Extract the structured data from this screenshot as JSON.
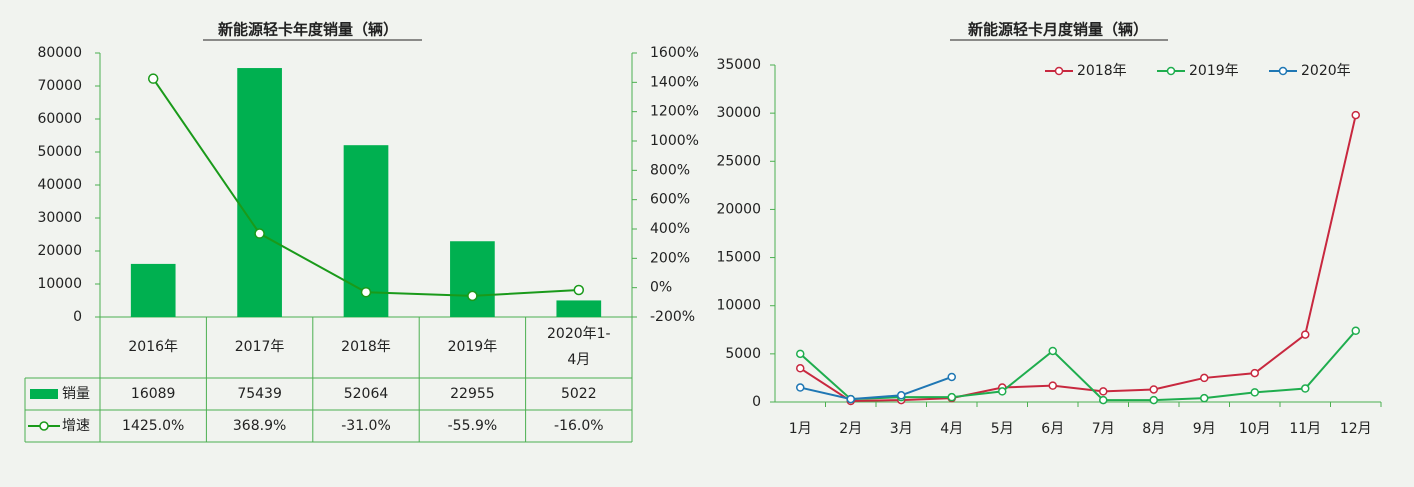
{
  "chart_data": [
    {
      "type": "bar-line",
      "title": "新能源轻卡年度销量（辆）",
      "categories": [
        "2016年",
        "2017年",
        "2018年",
        "2019年",
        "2020年1-4月"
      ],
      "series": [
        {
          "name": "销量",
          "color": "#00b050",
          "type": "bar",
          "values": [
            16089,
            75439,
            52064,
            22955,
            5022
          ]
        },
        {
          "name": "增速",
          "color": "#1a9a1a",
          "type": "line",
          "axis": "y2",
          "values": [
            1425.0,
            368.9,
            -31.0,
            -55.9,
            -16.0
          ],
          "value_labels": [
            "1425.0%",
            "368.9%",
            "-31.0%",
            "-55.9%",
            "-16.0%"
          ]
        }
      ],
      "ylim": [
        0,
        80000
      ],
      "yticks": [
        0,
        10000,
        20000,
        30000,
        40000,
        50000,
        60000,
        70000,
        80000
      ],
      "y2lim": [
        -200,
        1600
      ],
      "y2ticks": [
        {
          "value": -200,
          "label": "-200%"
        },
        {
          "value": 0,
          "label": "0%"
        },
        {
          "value": 200,
          "label": "200%"
        },
        {
          "value": 400,
          "label": "400%"
        },
        {
          "value": 600,
          "label": "600%"
        },
        {
          "value": 800,
          "label": "800%"
        },
        {
          "value": 1000,
          "label": "1000%"
        },
        {
          "value": 1200,
          "label": "1200%"
        },
        {
          "value": 1400,
          "label": "1400%"
        },
        {
          "value": 1600,
          "label": "1600%"
        }
      ]
    },
    {
      "type": "line",
      "title": "新能源轻卡月度销量（辆）",
      "categories": [
        "1月",
        "2月",
        "3月",
        "4月",
        "5月",
        "6月",
        "7月",
        "8月",
        "9月",
        "10月",
        "11月",
        "12月"
      ],
      "series": [
        {
          "name": "2018年",
          "color": "#c8283f",
          "values": [
            3500,
            100,
            200,
            400,
            1500,
            1700,
            1100,
            1300,
            2500,
            3000,
            7000,
            29800
          ]
        },
        {
          "name": "2019年",
          "color": "#1fad4e",
          "values": [
            5000,
            300,
            500,
            500,
            1100,
            5300,
            200,
            200,
            400,
            1000,
            1400,
            7400
          ]
        },
        {
          "name": "2020年",
          "color": "#1f77b4",
          "values": [
            1500,
            300,
            700,
            2600,
            null,
            null,
            null,
            null,
            null,
            null,
            null,
            null
          ]
        }
      ],
      "ylim": [
        0,
        35000
      ],
      "yticks": [
        0,
        5000,
        10000,
        15000,
        20000,
        25000,
        30000,
        35000
      ],
      "legend": "top-right"
    }
  ]
}
